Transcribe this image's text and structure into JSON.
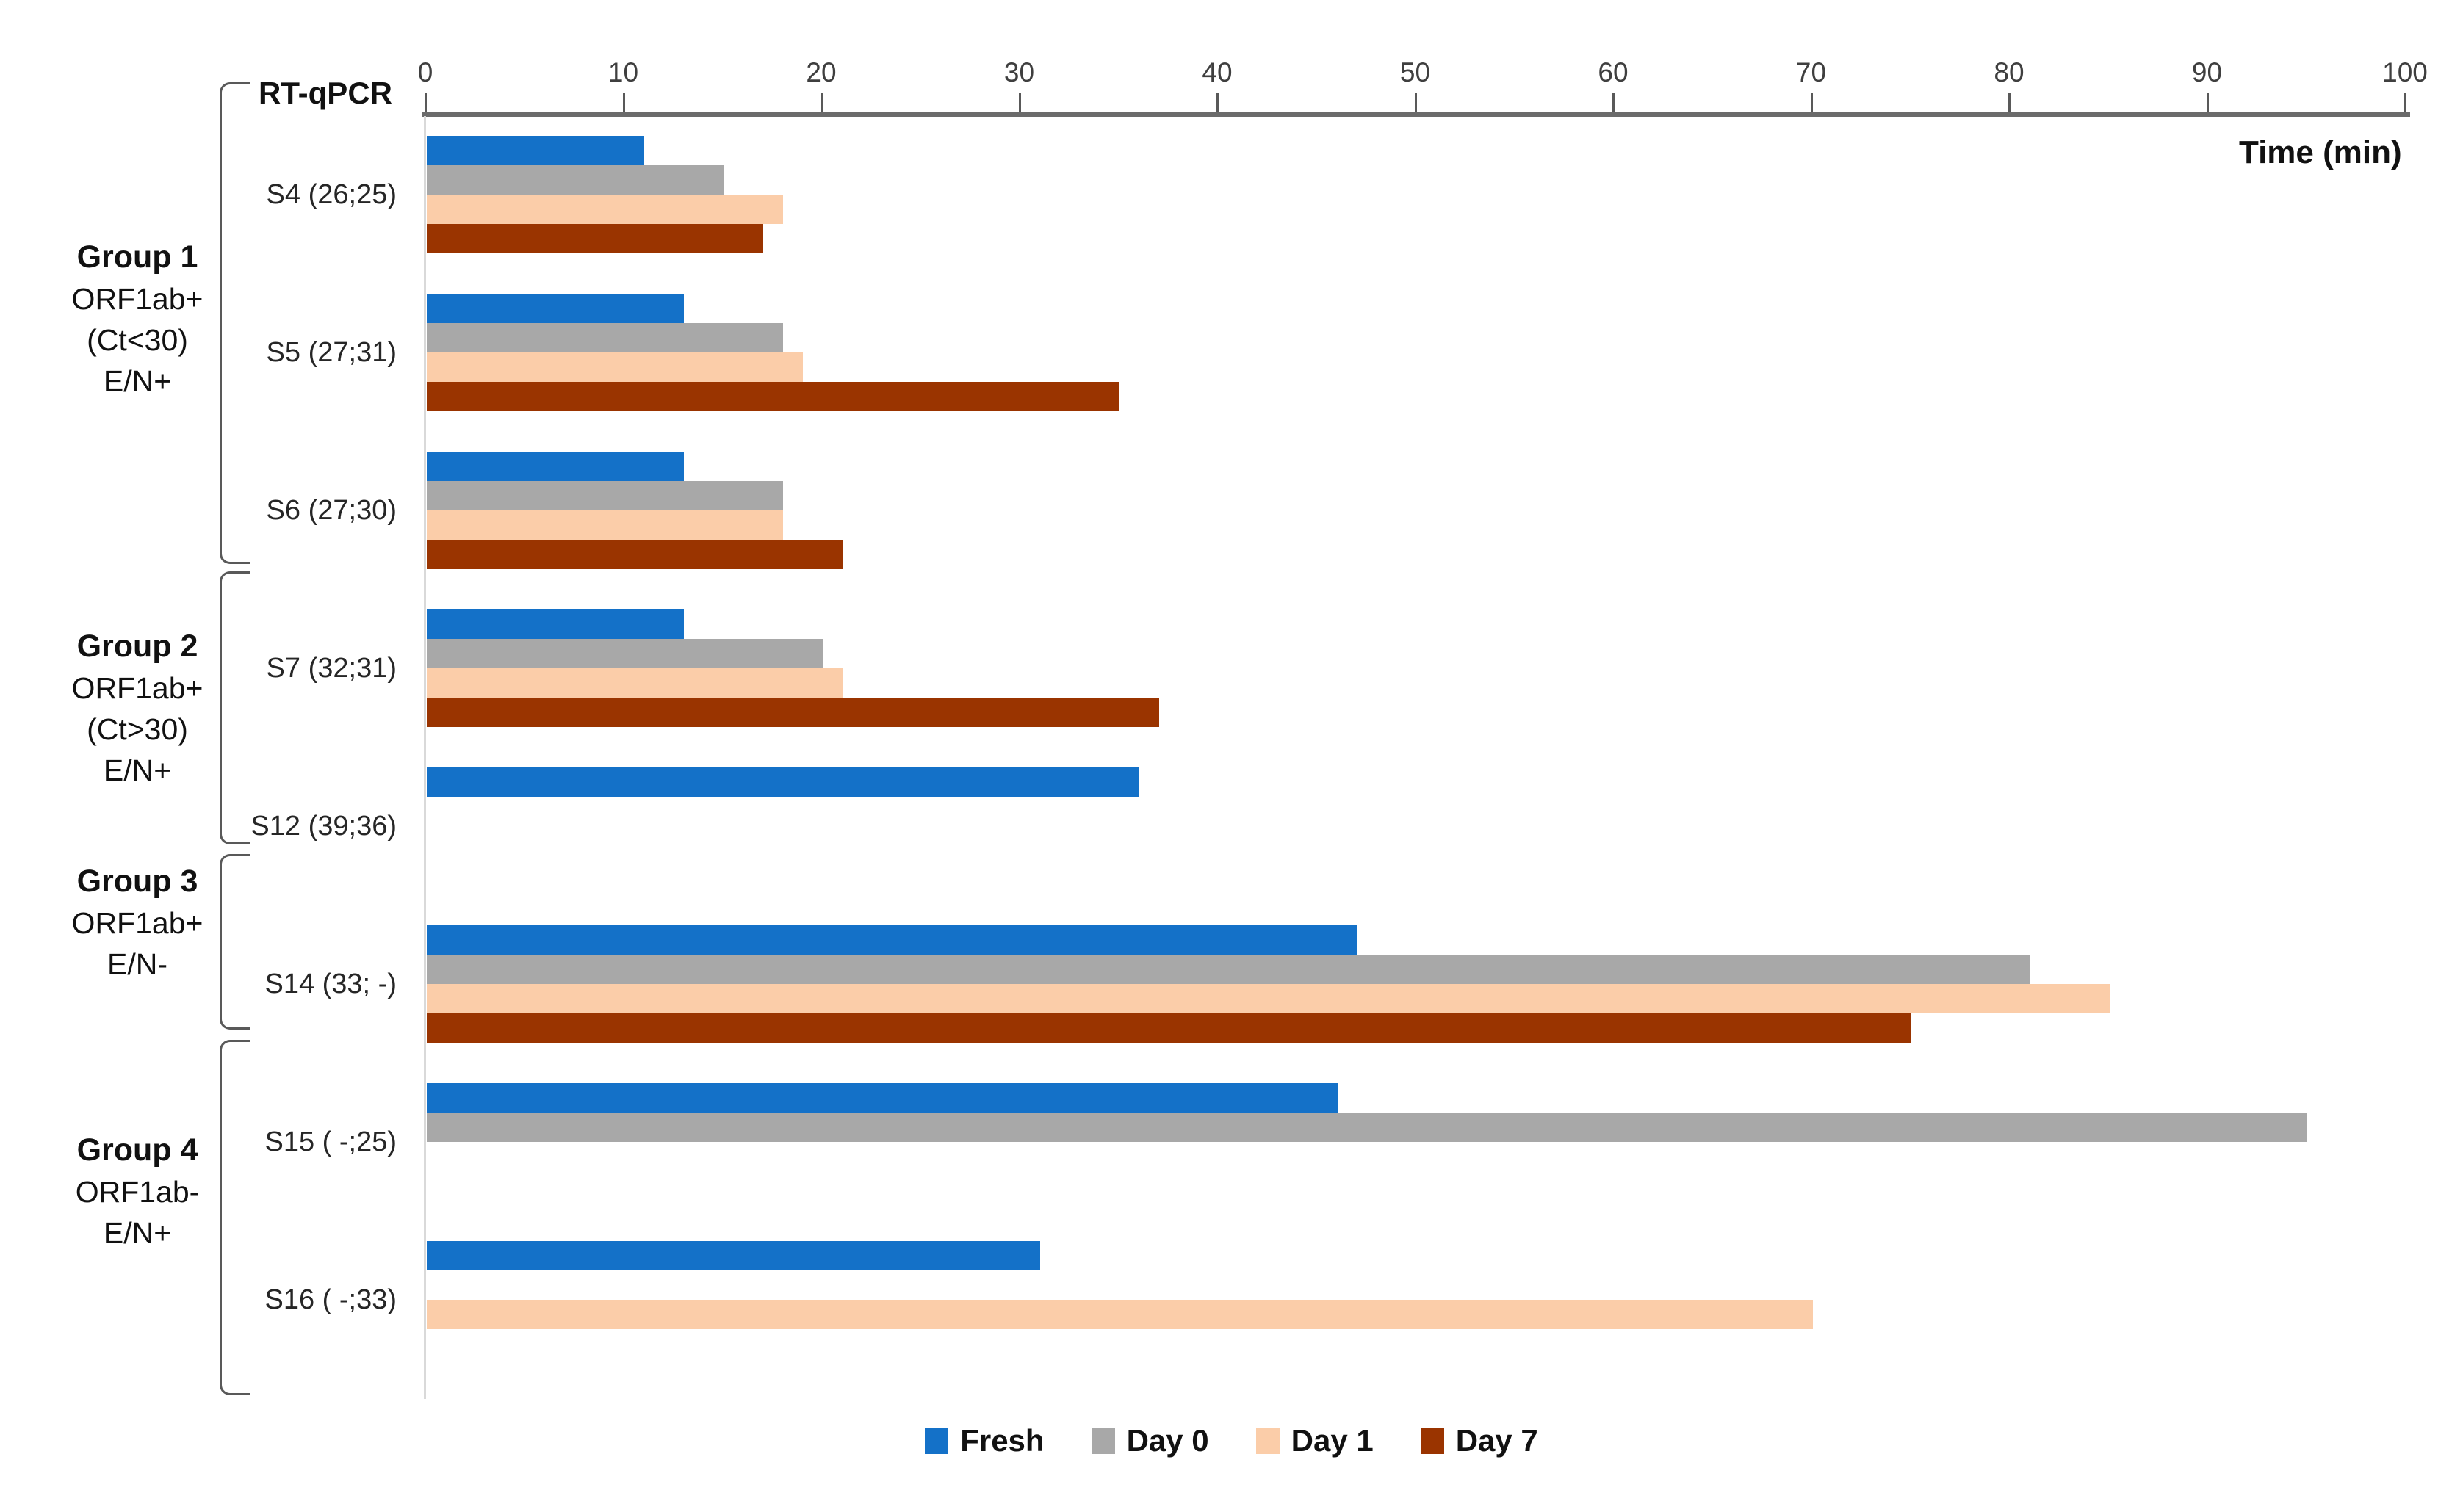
{
  "labels": {
    "rt_qpcr": "RT-qPCR",
    "time_axis_title": "Time (min)"
  },
  "chart_data": {
    "type": "bar",
    "orientation": "horizontal",
    "title": "",
    "xlabel": "Time (min)",
    "xlim": [
      0,
      100
    ],
    "xticks": [
      0,
      10,
      20,
      30,
      40,
      50,
      60,
      70,
      80,
      90,
      100
    ],
    "grid": false,
    "legend_position": "bottom",
    "categories": [
      "S4 (26;25)",
      "S5 (27;31)",
      "S6 (27;30)",
      "S7 (32;31)",
      "S12 (39;36)",
      "S14 (33; -)",
      "S15 ( -;25)",
      "S16 ( -;33)"
    ],
    "series": [
      {
        "name": "Fresh",
        "color": "#1471C8",
        "values": [
          11,
          13,
          13,
          13,
          36,
          47,
          46,
          31
        ]
      },
      {
        "name": "Day 0",
        "color": "#A8A8A8",
        "values": [
          15,
          18,
          18,
          20,
          0,
          81,
          95,
          0
        ]
      },
      {
        "name": "Day 1",
        "color": "#FBCDA9",
        "values": [
          18,
          19,
          18,
          21,
          0,
          85,
          0,
          70
        ]
      },
      {
        "name": "Day 7",
        "color": "#9A3400",
        "values": [
          17,
          35,
          21,
          37,
          0,
          75,
          0,
          0
        ]
      }
    ]
  },
  "groups": [
    {
      "title": "Group 1",
      "lines": [
        "ORF1ab+",
        "(Ct<30)",
        "E/N+"
      ],
      "rows": [
        0,
        2
      ]
    },
    {
      "title": "Group 2",
      "lines": [
        "ORF1ab+",
        "(Ct>30)",
        "E/N+"
      ],
      "rows": [
        3,
        4
      ]
    },
    {
      "title": "Group 3",
      "lines": [
        "ORF1ab+",
        "E/N-"
      ],
      "rows": [
        5,
        5
      ]
    },
    {
      "title": "Group 4",
      "lines": [
        "ORF1ab-",
        "E/N+"
      ],
      "rows": [
        6,
        7
      ]
    }
  ],
  "colors": {
    "axis_line": "#6B6B6B",
    "tick_mark": "#595959",
    "tick_text": "#3F3F3F",
    "category_text": "#262626",
    "category_axis_line": "#D9D9D9",
    "bracket": "#595959"
  }
}
